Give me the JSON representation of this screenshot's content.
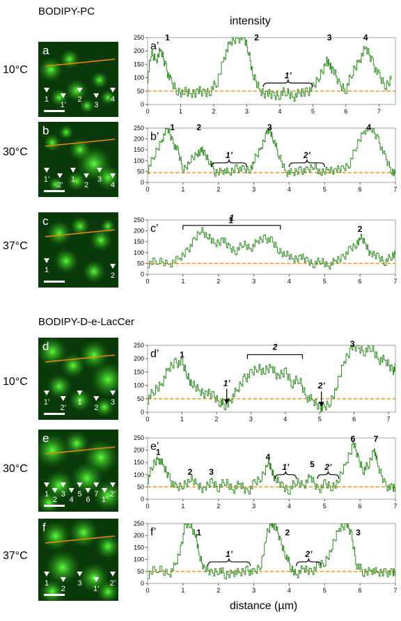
{
  "figure": {
    "section1_title": "BODIPY-PC",
    "section2_title": "BODIPY-D-e-LacCer",
    "intensity_label": "intensity",
    "xlabel": "distance (µm)",
    "colors": {
      "trace": "#2e8b22",
      "threshold": "#f08a00",
      "micro_bg": "#0a3a0a",
      "arrow_red": "#e00000"
    }
  },
  "rows": [
    {
      "temp": "10°C",
      "micro_label": "a",
      "plot_label": "a’",
      "micro_markers": [
        "1",
        "1’",
        "2",
        "3",
        "4"
      ]
    },
    {
      "temp": "30°C",
      "micro_label": "b",
      "plot_label": "b’",
      "micro_markers": [
        "1’",
        "2’",
        "1",
        "2",
        "3",
        "4"
      ]
    },
    {
      "temp": "37°C",
      "micro_label": "c",
      "plot_label": "c’",
      "micro_markers": [
        "1",
        "2"
      ]
    },
    {
      "temp": "10°C",
      "micro_label": "d",
      "plot_label": "d’",
      "micro_markers": [
        "1’",
        "2’",
        "1",
        "2",
        "3"
      ]
    },
    {
      "temp": "30°C",
      "micro_label": "e",
      "plot_label": "e’",
      "micro_markers": [
        "1",
        "2",
        "3",
        "4",
        "5",
        "6",
        "7",
        "1’",
        "2’"
      ]
    },
    {
      "temp": "37°C",
      "micro_label": "f",
      "plot_label": "f’",
      "micro_markers": [
        "1",
        "2",
        "3",
        "1’",
        "2’"
      ]
    }
  ],
  "chart_data": [
    {
      "type": "line",
      "panel": "a’",
      "xlim": [
        0,
        7.5
      ],
      "ylim": [
        0,
        250
      ],
      "xticks": [
        0,
        1,
        2,
        3,
        4,
        5,
        6,
        7
      ],
      "yticks": [
        0,
        50,
        100,
        150,
        200,
        250
      ],
      "threshold": 50,
      "points": [
        [
          0,
          100
        ],
        [
          0.1,
          190
        ],
        [
          0.25,
          170
        ],
        [
          0.4,
          200
        ],
        [
          0.55,
          140
        ],
        [
          0.7,
          80
        ],
        [
          0.9,
          50
        ],
        [
          1.1,
          45
        ],
        [
          1.3,
          40
        ],
        [
          1.5,
          50
        ],
        [
          1.7,
          40
        ],
        [
          1.9,
          55
        ],
        [
          2.1,
          80
        ],
        [
          2.3,
          180
        ],
        [
          2.5,
          230
        ],
        [
          2.7,
          250
        ],
        [
          2.9,
          250
        ],
        [
          3.05,
          200
        ],
        [
          3.2,
          100
        ],
        [
          3.4,
          50
        ],
        [
          3.6,
          40
        ],
        [
          3.8,
          30
        ],
        [
          4.0,
          40
        ],
        [
          4.2,
          45
        ],
        [
          4.4,
          30
        ],
        [
          4.6,
          40
        ],
        [
          4.8,
          50
        ],
        [
          5.0,
          60
        ],
        [
          5.2,
          110
        ],
        [
          5.4,
          160
        ],
        [
          5.5,
          150
        ],
        [
          5.6,
          130
        ],
        [
          5.8,
          70
        ],
        [
          6.0,
          60
        ],
        [
          6.2,
          120
        ],
        [
          6.4,
          170
        ],
        [
          6.6,
          210
        ],
        [
          6.8,
          160
        ],
        [
          7.0,
          100
        ],
        [
          7.2,
          70
        ],
        [
          7.4,
          110
        ]
      ],
      "peak_labels": [
        {
          "text": "1",
          "x": 0.6,
          "y": 240
        },
        {
          "text": "2",
          "x": 3.3,
          "y": 240
        },
        {
          "text": "3",
          "x": 5.5,
          "y": 240
        },
        {
          "text": "4",
          "x": 6.6,
          "y": 240
        }
      ],
      "brackets": [
        {
          "text": "1’",
          "x0": 3.5,
          "x1": 5.0,
          "y": 80,
          "type": "brace"
        }
      ]
    },
    {
      "type": "line",
      "panel": "b’",
      "xlim": [
        0,
        7
      ],
      "ylim": [
        0,
        250
      ],
      "xticks": [
        0,
        1,
        2,
        3,
        4,
        5,
        6,
        7
      ],
      "yticks": [
        0,
        50,
        100,
        150,
        200,
        250
      ],
      "threshold": 45,
      "points": [
        [
          0,
          60
        ],
        [
          0.2,
          130
        ],
        [
          0.4,
          200
        ],
        [
          0.55,
          250
        ],
        [
          0.7,
          190
        ],
        [
          0.85,
          140
        ],
        [
          1.0,
          60
        ],
        [
          1.2,
          100
        ],
        [
          1.4,
          130
        ],
        [
          1.5,
          150
        ],
        [
          1.6,
          130
        ],
        [
          1.75,
          100
        ],
        [
          1.9,
          40
        ],
        [
          2.1,
          60
        ],
        [
          2.3,
          40
        ],
        [
          2.5,
          70
        ],
        [
          2.7,
          55
        ],
        [
          2.9,
          60
        ],
        [
          3.0,
          100
        ],
        [
          3.2,
          160
        ],
        [
          3.35,
          230
        ],
        [
          3.45,
          240
        ],
        [
          3.55,
          200
        ],
        [
          3.7,
          120
        ],
        [
          3.9,
          50
        ],
        [
          4.1,
          40
        ],
        [
          4.3,
          60
        ],
        [
          4.5,
          50
        ],
        [
          4.7,
          80
        ],
        [
          4.9,
          40
        ],
        [
          5.1,
          60
        ],
        [
          5.3,
          55
        ],
        [
          5.5,
          60
        ],
        [
          5.7,
          90
        ],
        [
          5.9,
          170
        ],
        [
          6.1,
          240
        ],
        [
          6.3,
          250
        ],
        [
          6.5,
          200
        ],
        [
          6.7,
          110
        ],
        [
          6.9,
          50
        ],
        [
          7.0,
          50
        ]
      ],
      "peak_labels": [
        {
          "text": "1",
          "x": 0.7,
          "y": 240
        },
        {
          "text": "2",
          "x": 1.45,
          "y": 240
        },
        {
          "text": "3",
          "x": 3.45,
          "y": 240
        },
        {
          "text": "4",
          "x": 6.25,
          "y": 240
        }
      ],
      "brackets": [
        {
          "text": "1’",
          "x0": 1.8,
          "x1": 2.8,
          "y": 90,
          "type": "brace"
        },
        {
          "text": "2’",
          "x0": 4.0,
          "x1": 5.0,
          "y": 90,
          "type": "brace"
        }
      ]
    },
    {
      "type": "line",
      "panel": "c’",
      "xlim": [
        0,
        7
      ],
      "ylim": [
        0,
        250
      ],
      "xticks": [
        0,
        1,
        2,
        3,
        4,
        5,
        6,
        7
      ],
      "yticks": [
        0,
        50,
        100,
        150,
        200,
        250
      ],
      "threshold": 50,
      "points": [
        [
          0,
          50
        ],
        [
          0.3,
          60
        ],
        [
          0.6,
          50
        ],
        [
          0.9,
          70
        ],
        [
          1.1,
          110
        ],
        [
          1.3,
          150
        ],
        [
          1.5,
          210
        ],
        [
          1.7,
          170
        ],
        [
          1.9,
          140
        ],
        [
          2.1,
          160
        ],
        [
          2.3,
          120
        ],
        [
          2.5,
          110
        ],
        [
          2.7,
          140
        ],
        [
          2.9,
          120
        ],
        [
          3.1,
          150
        ],
        [
          3.3,
          170
        ],
        [
          3.5,
          150
        ],
        [
          3.7,
          110
        ],
        [
          3.9,
          90
        ],
        [
          4.1,
          70
        ],
        [
          4.3,
          80
        ],
        [
          4.5,
          60
        ],
        [
          4.7,
          50
        ],
        [
          4.9,
          60
        ],
        [
          5.1,
          40
        ],
        [
          5.3,
          60
        ],
        [
          5.5,
          80
        ],
        [
          5.7,
          110
        ],
        [
          5.9,
          140
        ],
        [
          6.0,
          170
        ],
        [
          6.15,
          140
        ],
        [
          6.3,
          90
        ],
        [
          6.5,
          80
        ],
        [
          6.7,
          60
        ],
        [
          6.9,
          80
        ],
        [
          7.0,
          100
        ]
      ],
      "peak_labels": [
        {
          "text": "1",
          "x": 2.35,
          "y": 235
        },
        {
          "text": "2",
          "x": 6.0,
          "y": 195
        }
      ],
      "brackets": [
        {
          "text": "1",
          "x0": 1.0,
          "x1": 3.75,
          "y": 225,
          "type": "square"
        }
      ]
    },
    {
      "type": "line",
      "panel": "d’",
      "xlim": [
        0,
        7.2
      ],
      "ylim": [
        0,
        250
      ],
      "xticks": [
        0,
        1,
        2,
        3,
        4,
        5,
        6,
        7
      ],
      "yticks": [
        0,
        50,
        100,
        150,
        200,
        250
      ],
      "threshold": 50,
      "points": [
        [
          0,
          50
        ],
        [
          0.2,
          80
        ],
        [
          0.4,
          110
        ],
        [
          0.6,
          160
        ],
        [
          0.8,
          190
        ],
        [
          1.0,
          180
        ],
        [
          1.15,
          140
        ],
        [
          1.3,
          100
        ],
        [
          1.5,
          80
        ],
        [
          1.7,
          70
        ],
        [
          1.9,
          60
        ],
        [
          2.1,
          40
        ],
        [
          2.25,
          20
        ],
        [
          2.4,
          50
        ],
        [
          2.6,
          80
        ],
        [
          2.8,
          130
        ],
        [
          3.0,
          140
        ],
        [
          3.2,
          170
        ],
        [
          3.4,
          150
        ],
        [
          3.6,
          170
        ],
        [
          3.8,
          130
        ],
        [
          4.0,
          150
        ],
        [
          4.2,
          110
        ],
        [
          4.4,
          120
        ],
        [
          4.6,
          60
        ],
        [
          4.8,
          40
        ],
        [
          5.0,
          20
        ],
        [
          5.1,
          10
        ],
        [
          5.3,
          40
        ],
        [
          5.5,
          100
        ],
        [
          5.7,
          190
        ],
        [
          5.9,
          240
        ],
        [
          6.1,
          240
        ],
        [
          6.3,
          230
        ],
        [
          6.5,
          240
        ],
        [
          6.7,
          200
        ],
        [
          6.9,
          190
        ],
        [
          7.1,
          160
        ],
        [
          7.2,
          160
        ]
      ],
      "peak_labels": [
        {
          "text": "1",
          "x": 1.0,
          "y": 205
        },
        {
          "text": "3",
          "x": 5.95,
          "y": 245
        }
      ],
      "arrows": [
        {
          "text": "1’",
          "x": 2.3,
          "y": 25
        },
        {
          "text": "2’",
          "x": 5.05,
          "y": 15
        }
      ],
      "brackets": [
        {
          "text": "2",
          "x0": 2.9,
          "x1": 4.5,
          "y": 215,
          "type": "square"
        }
      ]
    },
    {
      "type": "line",
      "panel": "e’",
      "xlim": [
        0,
        7
      ],
      "ylim": [
        0,
        250
      ],
      "xticks": [
        0,
        1,
        2,
        3,
        4,
        5,
        6,
        7
      ],
      "yticks": [
        0,
        50,
        100,
        150,
        200,
        250
      ],
      "threshold": 50,
      "points": [
        [
          0,
          80
        ],
        [
          0.15,
          140
        ],
        [
          0.3,
          170
        ],
        [
          0.45,
          130
        ],
        [
          0.6,
          90
        ],
        [
          0.8,
          40
        ],
        [
          1.0,
          60
        ],
        [
          1.2,
          80
        ],
        [
          1.4,
          60
        ],
        [
          1.6,
          40
        ],
        [
          1.8,
          70
        ],
        [
          2.0,
          50
        ],
        [
          2.2,
          70
        ],
        [
          2.4,
          40
        ],
        [
          2.6,
          60
        ],
        [
          2.8,
          30
        ],
        [
          3.0,
          60
        ],
        [
          3.2,
          90
        ],
        [
          3.4,
          150
        ],
        [
          3.5,
          120
        ],
        [
          3.6,
          80
        ],
        [
          3.8,
          50
        ],
        [
          4.0,
          40
        ],
        [
          4.2,
          70
        ],
        [
          4.4,
          60
        ],
        [
          4.6,
          90
        ],
        [
          4.8,
          40
        ],
        [
          5.0,
          60
        ],
        [
          5.2,
          50
        ],
        [
          5.4,
          80
        ],
        [
          5.6,
          150
        ],
        [
          5.8,
          230
        ],
        [
          5.95,
          160
        ],
        [
          6.1,
          120
        ],
        [
          6.25,
          140
        ],
        [
          6.4,
          210
        ],
        [
          6.5,
          130
        ],
        [
          6.7,
          60
        ],
        [
          6.9,
          40
        ],
        [
          7.0,
          50
        ]
      ],
      "peak_labels": [
        {
          "text": "1",
          "x": 0.3,
          "y": 180
        },
        {
          "text": "2",
          "x": 1.2,
          "y": 100
        },
        {
          "text": "3",
          "x": 1.8,
          "y": 100
        },
        {
          "text": "4",
          "x": 3.4,
          "y": 160
        },
        {
          "text": "5",
          "x": 4.65,
          "y": 130
        },
        {
          "text": "6",
          "x": 5.8,
          "y": 235
        },
        {
          "text": "7",
          "x": 6.45,
          "y": 235
        }
      ],
      "brackets": [
        {
          "text": "1’",
          "x0": 3.6,
          "x1": 4.2,
          "y": 100,
          "type": "brace"
        },
        {
          "text": "2’",
          "x0": 4.8,
          "x1": 5.4,
          "y": 100,
          "type": "brace"
        }
      ]
    },
    {
      "type": "line",
      "panel": "f’",
      "xlim": [
        0,
        7
      ],
      "ylim": [
        0,
        250
      ],
      "xticks": [
        0,
        1,
        2,
        3,
        4,
        5,
        6,
        7
      ],
      "yticks": [
        0,
        50,
        100,
        150,
        200,
        250
      ],
      "threshold": 50,
      "points": [
        [
          0,
          40
        ],
        [
          0.3,
          60
        ],
        [
          0.6,
          40
        ],
        [
          0.8,
          80
        ],
        [
          0.95,
          160
        ],
        [
          1.05,
          240
        ],
        [
          1.2,
          250
        ],
        [
          1.35,
          200
        ],
        [
          1.45,
          120
        ],
        [
          1.6,
          60
        ],
        [
          1.8,
          40
        ],
        [
          2.0,
          60
        ],
        [
          2.2,
          30
        ],
        [
          2.4,
          50
        ],
        [
          2.6,
          40
        ],
        [
          2.8,
          60
        ],
        [
          3.0,
          40
        ],
        [
          3.2,
          80
        ],
        [
          3.35,
          200
        ],
        [
          3.5,
          250
        ],
        [
          3.6,
          240
        ],
        [
          3.75,
          170
        ],
        [
          3.9,
          120
        ],
        [
          4.05,
          60
        ],
        [
          4.2,
          40
        ],
        [
          4.4,
          60
        ],
        [
          4.6,
          50
        ],
        [
          4.8,
          70
        ],
        [
          5.0,
          90
        ],
        [
          5.2,
          150
        ],
        [
          5.4,
          230
        ],
        [
          5.6,
          250
        ],
        [
          5.75,
          200
        ],
        [
          5.9,
          80
        ],
        [
          6.1,
          40
        ],
        [
          6.3,
          60
        ],
        [
          6.5,
          40
        ],
        [
          6.7,
          50
        ],
        [
          6.9,
          40
        ],
        [
          7.0,
          50
        ]
      ],
      "peak_labels": [
        {
          "text": "1",
          "x": 1.45,
          "y": 200
        },
        {
          "text": "2",
          "x": 3.95,
          "y": 200
        },
        {
          "text": "3",
          "x": 5.95,
          "y": 200
        }
      ],
      "brackets": [
        {
          "text": "1’",
          "x0": 1.7,
          "x1": 2.9,
          "y": 90,
          "type": "brace"
        },
        {
          "text": "2’",
          "x0": 4.2,
          "x1": 4.9,
          "y": 90,
          "type": "brace"
        }
      ]
    }
  ]
}
